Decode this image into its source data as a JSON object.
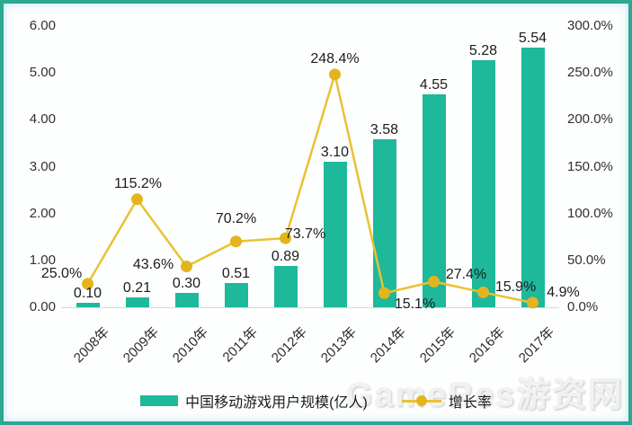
{
  "chart_data": {
    "type": "bar",
    "combo": "bar+line",
    "title": "",
    "categories": [
      "2008年",
      "2009年",
      "2010年",
      "2011年",
      "2012年",
      "2013年",
      "2014年",
      "2015年",
      "2016年",
      "2017年"
    ],
    "series": [
      {
        "name": "中国移动游戏用户规模(亿人)",
        "type": "bar",
        "axis": "left",
        "values": [
          0.1,
          0.21,
          0.3,
          0.51,
          0.89,
          3.1,
          3.58,
          4.55,
          5.28,
          5.54
        ],
        "labels": [
          "0.10",
          "0.21",
          "0.30",
          "0.51",
          "0.89",
          "3.10",
          "3.58",
          "4.55",
          "5.28",
          "5.54"
        ]
      },
      {
        "name": "增长率",
        "type": "line",
        "axis": "right",
        "values": [
          25.0,
          115.2,
          43.6,
          70.2,
          73.7,
          248.4,
          15.1,
          27.4,
          15.9,
          4.9
        ],
        "labels": [
          "25.0%",
          "115.2%",
          "43.6%",
          "70.2%",
          "73.7%",
          "248.4%",
          "15.1%",
          "27.4%",
          "15.9%",
          "4.9%"
        ]
      }
    ],
    "left_axis": {
      "ticks": [
        "6.00",
        "5.00",
        "4.00",
        "3.00",
        "2.00",
        "1.00",
        "0.00"
      ],
      "min": 0,
      "max": 6
    },
    "right_axis": {
      "ticks": [
        "300.0%",
        "250.0%",
        "200.0%",
        "150.0%",
        "100.0%",
        "50.0%",
        "0.0%"
      ],
      "min": 0,
      "max": 300
    },
    "legend_position": "bottom",
    "grid": false
  },
  "legend": {
    "bar_label": "中国移动游戏用户规模(亿人)",
    "line_label": "增长率"
  },
  "watermark": {
    "text": "GameRes游资网"
  },
  "colors": {
    "bar": "#1eb89b",
    "line": "#e9c232",
    "marker": "#e3b41e",
    "border": "#2ca893",
    "baseline": "#d8d8d8"
  }
}
